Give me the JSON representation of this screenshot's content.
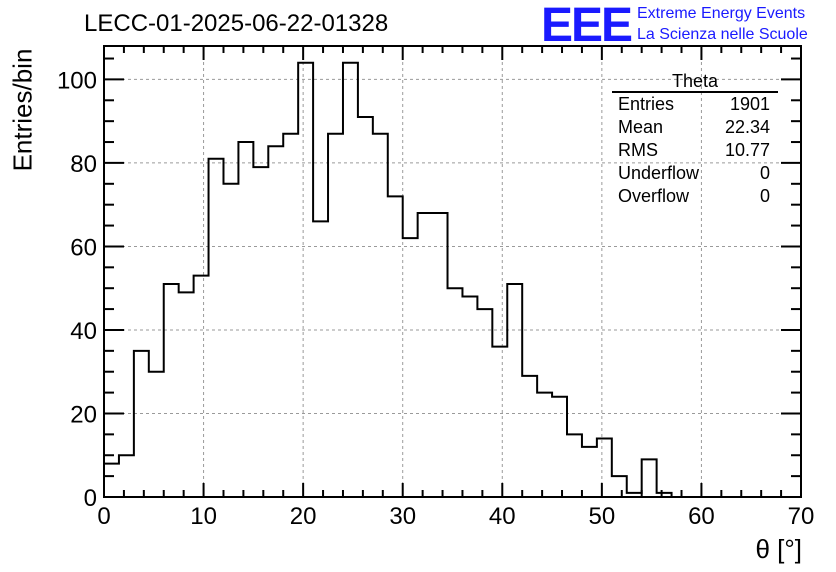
{
  "title": "LECC-01-2025-06-22-01328",
  "logo": {
    "mark": "EEE",
    "line1": "Extreme Energy Events",
    "line2": "La Scienza nelle Scuole",
    "color": "#1a1aff"
  },
  "stats": {
    "name": "Theta",
    "rows": [
      {
        "label": "Entries",
        "value": "1901"
      },
      {
        "label": "Mean",
        "value": "22.34"
      },
      {
        "label": "RMS",
        "value": "10.77"
      },
      {
        "label": "Underflow",
        "value": "0"
      },
      {
        "label": "Overflow",
        "value": "0"
      }
    ]
  },
  "chart_data": {
    "type": "bar",
    "style": "step-histogram",
    "title": "LECC-01-2025-06-22-01328",
    "xlabel": "θ [°]",
    "ylabel": "Entries/bin",
    "xlim": [
      0,
      70
    ],
    "ylim": [
      0,
      108
    ],
    "xticks": [
      0,
      10,
      20,
      30,
      40,
      50,
      60,
      70
    ],
    "yticks": [
      0,
      20,
      40,
      60,
      80,
      100
    ],
    "grid": true,
    "bin_edges_start": 0,
    "bin_width": 1.5,
    "values": [
      8,
      10,
      35,
      30,
      51,
      49,
      53,
      81,
      75,
      85,
      79,
      84,
      87,
      104,
      66,
      87,
      104,
      91,
      87,
      72,
      62,
      68,
      68,
      50,
      48,
      45,
      36,
      51,
      29,
      25,
      24,
      15,
      12,
      14,
      5,
      1,
      9,
      1,
      0,
      0,
      0,
      0,
      0,
      0,
      0,
      0,
      0
    ],
    "line_color": "#000000",
    "grid_color": "#9a9a9a"
  }
}
